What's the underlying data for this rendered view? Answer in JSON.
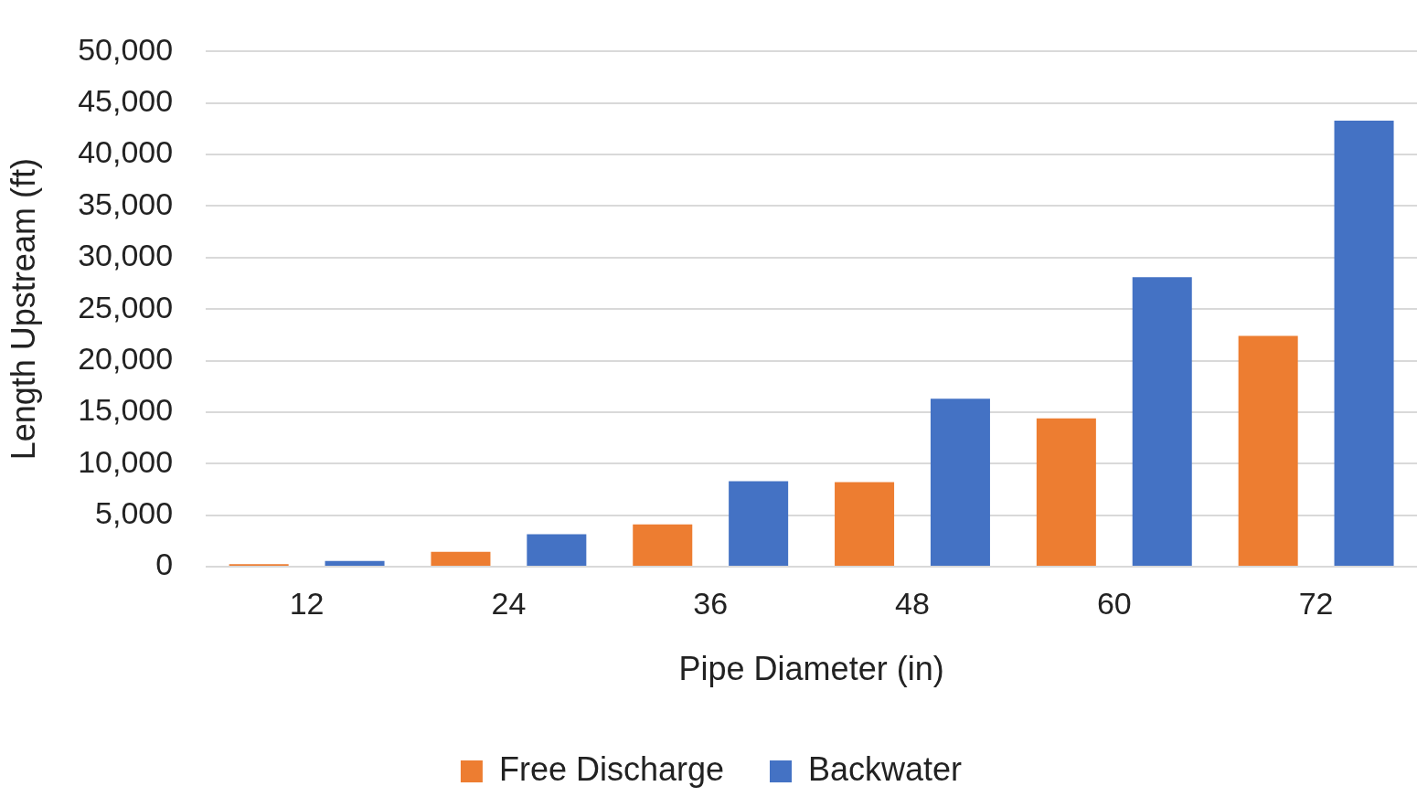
{
  "chart_data": {
    "type": "bar",
    "xlabel": "Pipe Diameter (in)",
    "ylabel": "Length Upstream (ft)",
    "categories": [
      "12",
      "24",
      "36",
      "48",
      "60",
      "72"
    ],
    "series": [
      {
        "name": "Free Discharge",
        "color": "#ed7d31",
        "values": [
          250,
          1450,
          4100,
          8200,
          14400,
          22400
        ]
      },
      {
        "name": "Backwater",
        "color": "#4472c4",
        "values": [
          550,
          3150,
          8300,
          16300,
          28100,
          43300
        ]
      }
    ],
    "ylim": [
      0,
      50000
    ],
    "yticks": [
      {
        "value": 0,
        "label": "0"
      },
      {
        "value": 5000,
        "label": "5,000"
      },
      {
        "value": 10000,
        "label": "10,000"
      },
      {
        "value": 15000,
        "label": "15,000"
      },
      {
        "value": 20000,
        "label": "20,000"
      },
      {
        "value": 25000,
        "label": "25,000"
      },
      {
        "value": 30000,
        "label": "30,000"
      },
      {
        "value": 35000,
        "label": "35,000"
      },
      {
        "value": 40000,
        "label": "40,000"
      },
      {
        "value": 45000,
        "label": "45,000"
      },
      {
        "value": 50000,
        "label": "50,000"
      }
    ],
    "grid": "y",
    "legend": "bottom"
  }
}
